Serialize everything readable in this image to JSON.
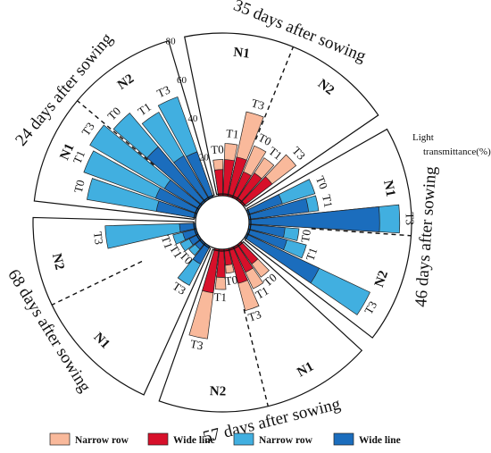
{
  "chart_data": {
    "type": "radial-bar",
    "axis_title": "Light transmittance(%)",
    "radial_ticks": [
      20,
      40,
      60,
      80
    ],
    "rlim": [
      0,
      80
    ],
    "legend": [
      {
        "label": "Narrow row",
        "color": "#f9b99b"
      },
      {
        "label": "Wide line",
        "color": "#d7102a"
      },
      {
        "label": "Narrow row",
        "color": "#41afe0"
      },
      {
        "label": "Wide line",
        "color": "#1b6dbd"
      }
    ],
    "stages": [
      {
        "name": "24 days after sowing",
        "groups": [
          {
            "name": "N1",
            "bars": [
              {
                "treatment": "T0",
                "narrow_row": 55,
                "wide_line": 20
              },
              {
                "treatment": "T1",
                "narrow_row": 60,
                "wide_line": 22
              },
              {
                "treatment": "T3",
                "narrow_row": 63,
                "wide_line": 20
              }
            ]
          },
          {
            "name": "N2",
            "bars": [
              {
                "treatment": "T0",
                "narrow_row": 58,
                "wide_line": 36
              },
              {
                "treatment": "T1",
                "narrow_row": 50,
                "wide_line": 25
              },
              {
                "treatment": "T3",
                "narrow_row": 53,
                "wide_line": 24
              }
            ]
          }
        ]
      },
      {
        "name": "35 days after sowing",
        "groups": [
          {
            "name": "N1",
            "bars": [
              {
                "treatment": "T0",
                "narrow_row": 18,
                "wide_line": 13
              },
              {
                "treatment": "T1",
                "narrow_row": 26,
                "wide_line": 18
              },
              {
                "treatment": "T3",
                "narrow_row": 43,
                "wide_line": 20
              }
            ]
          },
          {
            "name": "N2",
            "bars": [
              {
                "treatment": "T0",
                "narrow_row": 28,
                "wide_line": 14
              },
              {
                "treatment": "T1",
                "narrow_row": 25,
                "wide_line": 16
              },
              {
                "treatment": "T3",
                "narrow_row": 33,
                "wide_line": 18
              }
            ]
          }
        ]
      },
      {
        "name": "46 days after sowing",
        "groups": [
          {
            "name": "N1",
            "bars": [
              {
                "treatment": "T0",
                "narrow_row": 35,
                "wide_line": 18
              },
              {
                "treatment": "T1",
                "narrow_row": 35,
                "wide_line": 30
              },
              {
                "treatment": "T3",
                "narrow_row": 75,
                "wide_line": 65
              }
            ]
          },
          {
            "name": "N2",
            "bars": [
              {
                "treatment": "T0",
                "narrow_row": 25,
                "wide_line": 18
              },
              {
                "treatment": "T1",
                "narrow_row": 30,
                "wide_line": 20
              },
              {
                "treatment": "T3",
                "narrow_row": 68,
                "wide_line": 40
              }
            ]
          }
        ]
      },
      {
        "name": "57 days after sowing",
        "groups": [
          {
            "name": "N1",
            "bars": [
              {
                "treatment": "T0",
                "narrow_row": 20,
                "wide_line": 12
              },
              {
                "treatment": "T1",
                "narrow_row": 23,
                "wide_line": 14
              },
              {
                "treatment": "T3",
                "narrow_row": 32,
                "wide_line": 18
              }
            ]
          },
          {
            "name": "N2",
            "bars": [
              {
                "treatment": "T0",
                "narrow_row": 12,
                "wide_line": 8
              },
              {
                "treatment": "T1",
                "narrow_row": 20,
                "wide_line": 14
              },
              {
                "treatment": "T3",
                "narrow_row": 45,
                "wide_line": 22
              }
            ]
          }
        ]
      },
      {
        "name": "68 days after sowing",
        "groups": [
          {
            "name": "N1",
            "bars": [
              {
                "treatment": "T3",
                "narrow_row": 22,
                "wide_line": 10
              },
              {
                "treatment": "T0",
                "narrow_row": 8,
                "wide_line": 4
              },
              {
                "treatment": "T1",
                "narrow_row": 10,
                "wide_line": 5
              }
            ]
          },
          {
            "name": "N2",
            "bars": [
              {
                "treatment": "T1",
                "narrow_row": 12,
                "wide_line": 7
              },
              {
                "treatment": "T3",
                "narrow_row": 45,
                "wide_line": 8
              }
            ]
          }
        ]
      }
    ]
  }
}
